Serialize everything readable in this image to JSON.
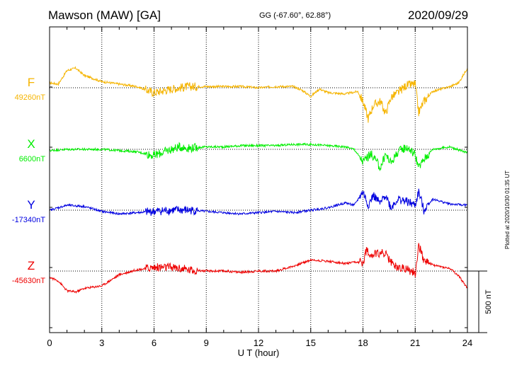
{
  "header": {
    "station": "Mawson (MAW)  [GA]",
    "coords": "GG (-67.60°,  62.88°)",
    "date": "2020/09/29"
  },
  "plotted_note": "Plotted at 2020/10/30 01:35 UT",
  "chart_data": {
    "type": "line",
    "xlabel": "U T (hour)",
    "xlim": [
      0,
      24
    ],
    "xticks": [
      0,
      3,
      6,
      9,
      12,
      15,
      18,
      21,
      24
    ],
    "scale_bar_label": "500 nT",
    "scale_bar_nT": 500,
    "grid": true,
    "series": [
      {
        "name": "F",
        "baseline_label": "49260nT",
        "baseline_nT": 49260,
        "color": "#f5b400",
        "x": [
          0,
          0.5,
          1,
          1.5,
          2,
          3,
          4,
          5,
          6,
          7,
          8,
          9,
          10,
          11,
          12,
          13,
          14,
          14.5,
          15,
          15.5,
          16,
          17,
          17.7,
          18,
          18.3,
          18.6,
          19,
          19.3,
          19.6,
          20,
          20.5,
          21,
          21.2,
          21.5,
          22,
          22.5,
          23,
          23.5,
          24
        ],
        "y": [
          49300,
          49290,
          49400,
          49420,
          49360,
          49310,
          49290,
          49270,
          49220,
          49250,
          49270,
          49270,
          49270,
          49270,
          49260,
          49270,
          49270,
          49240,
          49190,
          49250,
          49220,
          49210,
          49230,
          49150,
          49010,
          49120,
          49150,
          49050,
          49180,
          49220,
          49280,
          49290,
          49060,
          49150,
          49230,
          49250,
          49270,
          49300,
          49420
        ]
      },
      {
        "name": "X",
        "baseline_label": "6600nT",
        "baseline_nT": 6600,
        "color": "#00ee00",
        "x": [
          0,
          1,
          2,
          3,
          4,
          5,
          6,
          7,
          7.5,
          8,
          9,
          10,
          11,
          12,
          13,
          14,
          15,
          16,
          17,
          17.5,
          18,
          18.2,
          18.5,
          19,
          19.3,
          19.6,
          20,
          20.5,
          21,
          21.2,
          21.5,
          22,
          23,
          24
        ],
        "y": [
          6590,
          6600,
          6600,
          6600,
          6590,
          6580,
          6550,
          6600,
          6620,
          6610,
          6620,
          6620,
          6630,
          6630,
          6630,
          6640,
          6640,
          6630,
          6620,
          6600,
          6500,
          6530,
          6560,
          6450,
          6560,
          6490,
          6580,
          6620,
          6560,
          6450,
          6520,
          6600,
          6620,
          6570
        ]
      },
      {
        "name": "Y",
        "baseline_label": "-17340nT",
        "baseline_nT": -17340,
        "color": "#0000e0",
        "x": [
          0,
          1,
          2,
          3,
          4,
          5,
          6,
          7,
          8,
          9,
          10,
          11,
          12,
          13,
          14,
          15,
          16,
          17,
          17.5,
          18,
          18.3,
          18.6,
          19,
          19.3,
          19.6,
          20,
          20.5,
          21,
          21.2,
          21.5,
          22,
          23,
          24
        ],
        "y": [
          -17340,
          -17300,
          -17310,
          -17350,
          -17370,
          -17360,
          -17350,
          -17340,
          -17340,
          -17350,
          -17360,
          -17370,
          -17360,
          -17350,
          -17360,
          -17340,
          -17320,
          -17280,
          -17300,
          -17190,
          -17300,
          -17220,
          -17290,
          -17210,
          -17320,
          -17250,
          -17270,
          -17300,
          -17190,
          -17340,
          -17250,
          -17290,
          -17300
        ]
      },
      {
        "name": "Z",
        "baseline_label": "-45630nT",
        "baseline_nT": -45630,
        "color": "#ee0000",
        "x": [
          0,
          0.5,
          1,
          1.5,
          2,
          3,
          4,
          5,
          6,
          7,
          8,
          9,
          10,
          11,
          12,
          13,
          14,
          15,
          16,
          17,
          17.5,
          18,
          18.2,
          18.5,
          19,
          19.3,
          19.6,
          20,
          20.5,
          21,
          21.2,
          21.5,
          22,
          23,
          23.5,
          24
        ],
        "y": [
          -45680,
          -45710,
          -45790,
          -45800,
          -45770,
          -45750,
          -45660,
          -45620,
          -45600,
          -45600,
          -45620,
          -45630,
          -45630,
          -45640,
          -45630,
          -45630,
          -45590,
          -45540,
          -45550,
          -45570,
          -45560,
          -45560,
          -45460,
          -45500,
          -45480,
          -45490,
          -45560,
          -45600,
          -45610,
          -45650,
          -45420,
          -45540,
          -45580,
          -45610,
          -45670,
          -45770
        ]
      }
    ]
  }
}
